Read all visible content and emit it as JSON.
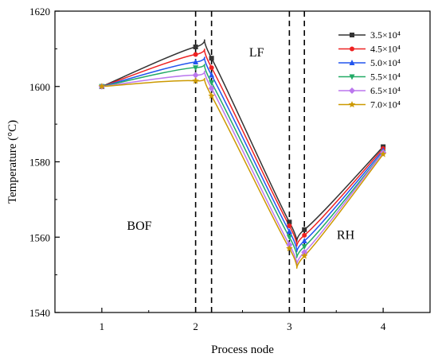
{
  "chart_data": {
    "type": "line",
    "xlabel": "Process node",
    "ylabel": "Temperature (°C)",
    "xlim": [
      0.5,
      4.5
    ],
    "ylim": [
      1540,
      1620
    ],
    "x_ticks": [
      1,
      2,
      3,
      4
    ],
    "y_ticks": [
      1540,
      1560,
      1580,
      1600,
      1620
    ],
    "x": [
      1,
      2,
      2.17,
      3,
      3.16,
      4
    ],
    "series": [
      {
        "name": "3.5×10⁴",
        "color": "#333333",
        "marker": "square",
        "values": [
          1600,
          1610.5,
          1607.5,
          1564,
          1562,
          1584
        ]
      },
      {
        "name": "4.5×10⁴",
        "color": "#ee2222",
        "marker": "circle",
        "values": [
          1600,
          1608.5,
          1605,
          1563,
          1560.5,
          1583.5
        ]
      },
      {
        "name": "5.0×10⁴",
        "color": "#2255ee",
        "marker": "triangle",
        "values": [
          1600,
          1606.5,
          1603,
          1561.5,
          1559,
          1583
        ]
      },
      {
        "name": "5.5×10⁴",
        "color": "#22aa66",
        "marker": "triangle-down",
        "values": [
          1600,
          1605,
          1601,
          1560,
          1557.5,
          1582.5
        ]
      },
      {
        "name": "6.5×10⁴",
        "color": "#bb77ee",
        "marker": "diamond",
        "values": [
          1600,
          1603,
          1599.5,
          1558,
          1556,
          1582.5
        ]
      },
      {
        "name": "7.0×10⁴",
        "color": "#cc9900",
        "marker": "star",
        "values": [
          1600,
          1601.5,
          1597.5,
          1557,
          1555,
          1582
        ]
      }
    ],
    "vertical_lines_x": [
      2,
      2.17,
      3,
      3.16
    ],
    "region_labels": [
      {
        "text": "BOF",
        "x": 1.4,
        "y": 1562
      },
      {
        "text": "LF",
        "x": 2.65,
        "y": 1608
      },
      {
        "text": "RH",
        "x": 3.6,
        "y": 1559.5
      }
    ],
    "legend_position": "top-right",
    "grid": false
  }
}
